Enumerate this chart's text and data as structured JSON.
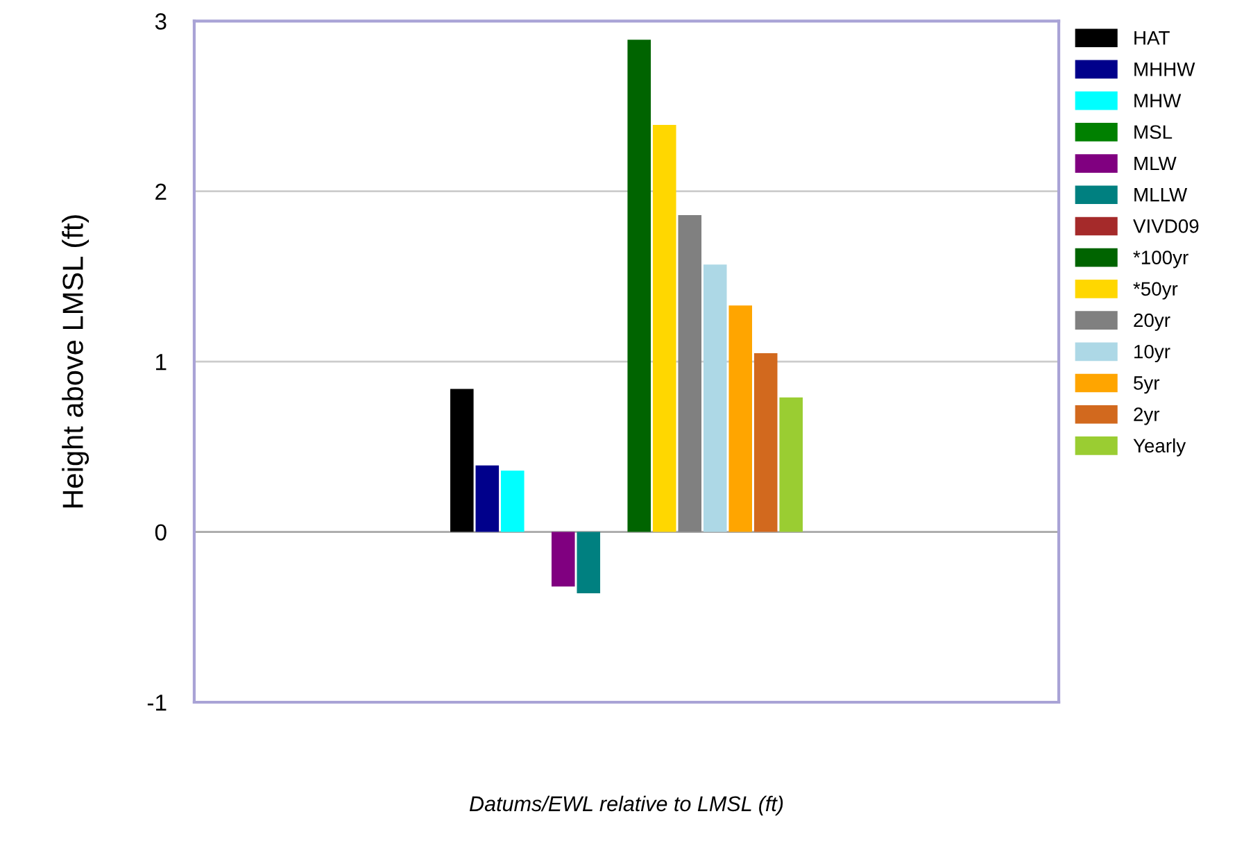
{
  "chart_data": {
    "type": "bar",
    "xlabel": "Datums/EWL relative to LMSL (ft)",
    "ylabel": "Height above LMSL (ft)",
    "categories": [
      null
    ],
    "series": [
      {
        "name": "HAT",
        "color": "#000000",
        "values": [
          0.84
        ]
      },
      {
        "name": "MHHW",
        "color": "#00008b",
        "values": [
          0.39
        ]
      },
      {
        "name": "MHW",
        "color": "#00ffff",
        "values": [
          0.36
        ]
      },
      {
        "name": "MSL",
        "color": "#008000",
        "values": [
          0
        ]
      },
      {
        "name": "MLW",
        "color": "#800080",
        "values": [
          -0.32
        ]
      },
      {
        "name": "MLLW",
        "color": "#008080",
        "values": [
          -0.36
        ]
      },
      {
        "name": "VIVD09",
        "color": "#a52a2a",
        "values": [
          0
        ]
      },
      {
        "name": "*100yr",
        "color": "#006400",
        "values": [
          2.89
        ]
      },
      {
        "name": "*50yr",
        "color": "#ffd700",
        "values": [
          2.39
        ]
      },
      {
        "name": "20yr",
        "color": "#808080",
        "values": [
          1.86
        ]
      },
      {
        "name": "10yr",
        "color": "#add8e6",
        "values": [
          1.57
        ]
      },
      {
        "name": "5yr",
        "color": "#ffa500",
        "values": [
          1.33
        ]
      },
      {
        "name": "2yr",
        "color": "#d2691e",
        "values": [
          1.05
        ]
      },
      {
        "name": "Yearly",
        "color": "#9acd32",
        "values": [
          0.79
        ]
      }
    ],
    "ylim": [
      -1,
      3
    ],
    "yticks": [
      -1,
      0,
      1,
      2,
      3
    ],
    "grid": "y",
    "legend": "top right"
  }
}
